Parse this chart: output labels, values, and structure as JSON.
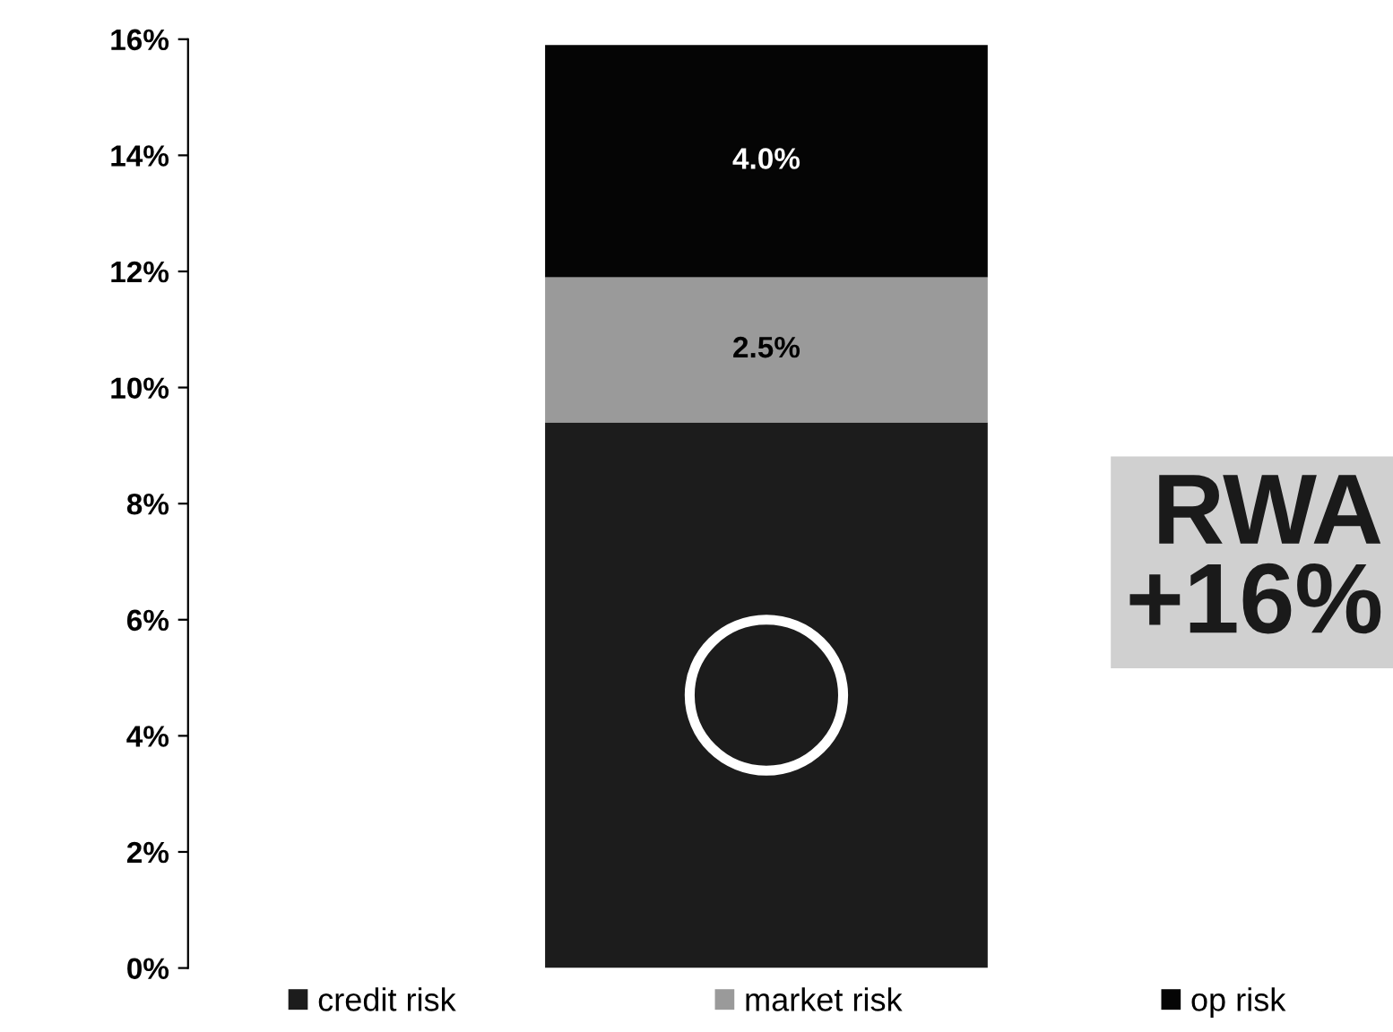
{
  "chart_data": {
    "type": "bar",
    "stacked": true,
    "categories": [
      null
    ],
    "series": [
      {
        "name": "credit risk",
        "color": "#1c1c1c",
        "values": [
          9.4
        ],
        "value_labels": [
          null
        ]
      },
      {
        "name": "market risk",
        "color": "#9a9a9a",
        "values": [
          2.5
        ],
        "value_labels": [
          "2.5%"
        ]
      },
      {
        "name": "op risk",
        "color": "#050505",
        "values": [
          4.0
        ],
        "value_labels": [
          "4.0%"
        ]
      }
    ],
    "ylim": [
      0,
      16
    ],
    "yticks": [
      {
        "value": 0,
        "label": "0%"
      },
      {
        "value": 2,
        "label": "2%"
      },
      {
        "value": 4,
        "label": "4%"
      },
      {
        "value": 6,
        "label": "6%"
      },
      {
        "value": 8,
        "label": "8%"
      },
      {
        "value": 10,
        "label": "10%"
      },
      {
        "value": 12,
        "label": "12%"
      },
      {
        "value": 14,
        "label": "14%"
      },
      {
        "value": 16,
        "label": "16%"
      }
    ],
    "tick_labels": "y",
    "grid": false,
    "legend": "bottom",
    "annotations": [
      "RWA\n+16%"
    ]
  }
}
